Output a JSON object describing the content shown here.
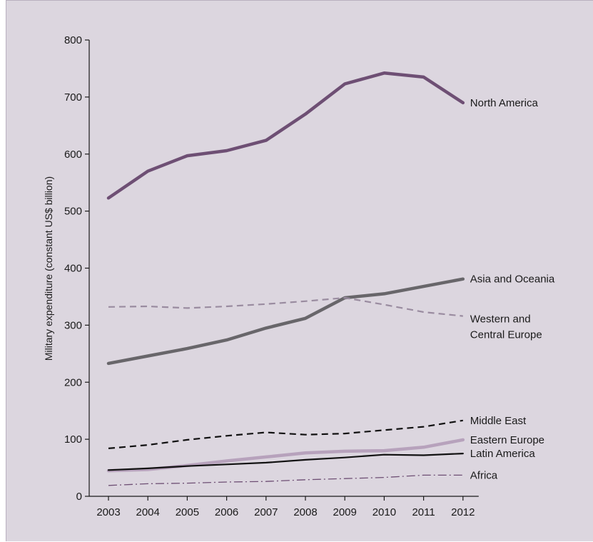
{
  "chart_data": {
    "type": "line",
    "title": "",
    "xlabel": "",
    "ylabel": "Military expenditure (constant US$ billion)",
    "x": [
      2003,
      2004,
      2005,
      2006,
      2007,
      2008,
      2009,
      2010,
      2011,
      2012
    ],
    "ylim": [
      0,
      800
    ],
    "yticks": [
      0,
      100,
      200,
      300,
      400,
      500,
      600,
      700,
      800
    ],
    "grid": false,
    "legend": "inline labels at line ends",
    "series": [
      {
        "name": "North America",
        "label_lines": [
          "North America"
        ],
        "values": [
          523,
          570,
          597,
          606,
          624,
          670,
          723,
          742,
          735,
          690
        ],
        "color": "#6e4f74",
        "style": "solid",
        "weight": "thick"
      },
      {
        "name": "Asia and Oceania",
        "label_lines": [
          "Asia and Oceania"
        ],
        "values": [
          233,
          246,
          259,
          274,
          295,
          312,
          348,
          355,
          368,
          381
        ],
        "color": "#68666a",
        "style": "solid",
        "weight": "thick"
      },
      {
        "name": "Western and Central Europe",
        "label_lines": [
          "Western and",
          "Central Europe"
        ],
        "values": [
          332,
          333,
          330,
          333,
          337,
          342,
          348,
          336,
          323,
          316
        ],
        "color": "#9a8ca0",
        "style": "dashed",
        "weight": "medium"
      },
      {
        "name": "Middle East",
        "label_lines": [
          "Middle East"
        ],
        "values": [
          84,
          90,
          99,
          106,
          112,
          108,
          110,
          116,
          122,
          133
        ],
        "color": "#111111",
        "style": "dashed",
        "weight": "medium"
      },
      {
        "name": "Eastern Europe",
        "label_lines": [
          "Eastern Europe"
        ],
        "values": [
          45,
          47,
          54,
          62,
          69,
          76,
          79,
          80,
          86,
          99
        ],
        "color": "#b7a2bc",
        "style": "solid",
        "weight": "thick"
      },
      {
        "name": "Latin America",
        "label_lines": [
          "Latin America"
        ],
        "values": [
          46,
          49,
          53,
          56,
          59,
          64,
          68,
          73,
          72,
          75
        ],
        "color": "#111111",
        "style": "solid",
        "weight": "medium"
      },
      {
        "name": "Africa",
        "label_lines": [
          "Africa"
        ],
        "values": [
          19,
          22,
          23,
          25,
          26,
          29,
          31,
          33,
          37,
          37
        ],
        "color": "#6e4f74",
        "style": "dashdot",
        "weight": "thin"
      }
    ]
  }
}
